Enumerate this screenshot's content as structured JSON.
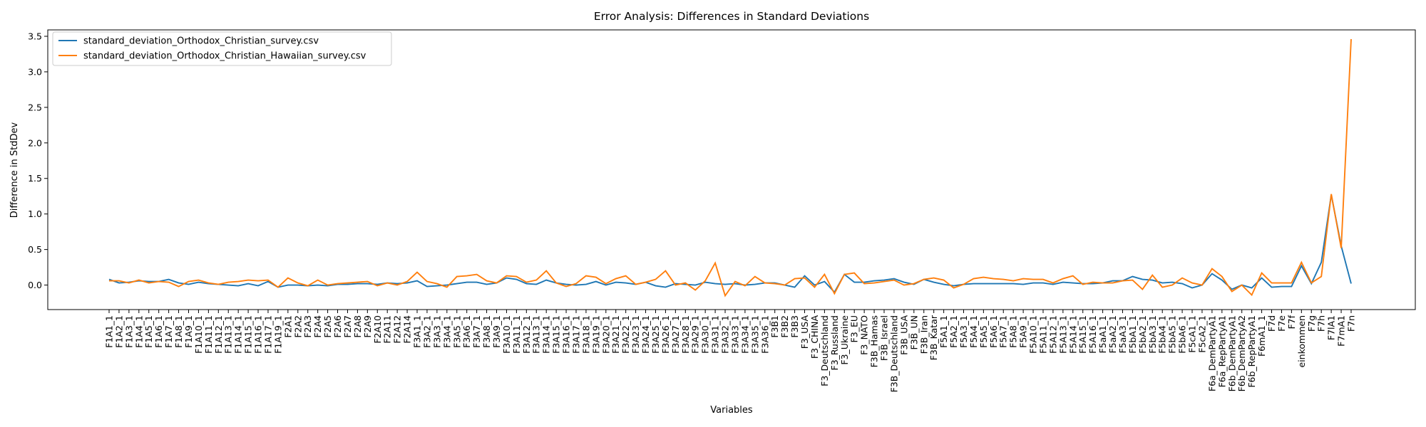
{
  "chart_data": {
    "type": "line",
    "title": "Error Analysis: Differences in Standard Deviations",
    "x_label": "Variables",
    "y_label": "Difference in StdDev",
    "categories": [
      "F1A1_1",
      "F1A2_1",
      "F1A3_1",
      "F1A4_1",
      "F1A5_1",
      "F1A6_1",
      "F1A7_1",
      "F1A8_1",
      "F1A9_1",
      "F1A10_1",
      "F1A11_1",
      "F1A12_1",
      "F1A13_1",
      "F1A14_1",
      "F1A15_1",
      "F1A16_1",
      "F1A17_1",
      "F1A19_1",
      "F2A1",
      "F2A2",
      "F2A3",
      "F2A4",
      "F2A5",
      "F2A6",
      "F2A7",
      "F2A8",
      "F2A9",
      "F2A10",
      "F2A11",
      "F2A12",
      "F2A14",
      "F3A1_1",
      "F3A2_1",
      "F3A3_1",
      "F3A4_1",
      "F3A5_1",
      "F3A6_1",
      "F3A7_1",
      "F3A8_1",
      "F3A9_1",
      "F3A10_1",
      "F3A11_1",
      "F3A12_1",
      "F3A13_1",
      "F3A14_1",
      "F3A15_1",
      "F3A16_1",
      "F3A17_1",
      "F3A18_1",
      "F3A19_1",
      "F3A20_1",
      "F3A21_1",
      "F3A22_1",
      "F3A23_1",
      "F3A24_1",
      "F3A25_1",
      "F3A26_1",
      "F3A27_1",
      "F3A28_1",
      "F3A29_1",
      "F3A30_1",
      "F3A31_1",
      "F3A32_1",
      "F3A33_1",
      "F3A34_1",
      "F3A35_1",
      "F3A36_1",
      "F3B1",
      "F3B2",
      "F3B3",
      "F3_USA",
      "F3_CHINA",
      "F3_Deutschland",
      "F3_Russland",
      "F3_Ukraine",
      "F3_EU",
      "F3_NATO",
      "F3B_Hamas",
      "F3B_Israel",
      "F3B_Deutschland",
      "F3B_USA",
      "F3B_UN",
      "F3B_Iran",
      "F3B_Katar",
      "F5A1_1",
      "F5A2_1",
      "F5A3_1",
      "F5A4_1",
      "F5A5_1",
      "F5A6_1",
      "F5A7_1",
      "F5A8_1",
      "F5A9_1",
      "F5A10_1",
      "F5A11_1",
      "F5A12_1",
      "F5A13_1",
      "F5A14_1",
      "F5A15_1",
      "F5A16_1",
      "F5aA1_1",
      "F5aA2_1",
      "F5aA3_1",
      "F5bA1_1",
      "F5bA2_1",
      "F5bA3_1",
      "F5bA4_1",
      "F5bA5_1",
      "F5bA6_1",
      "F5cA1_1",
      "F5cA2_1",
      "F6a_DemPartyA1",
      "F6a_RepPartyA1",
      "F6b_DemPartyA1",
      "F6b_DemPartyA2",
      "F6b_RepPartyA1",
      "F6mA1_1",
      "F7d",
      "F7e",
      "F7f",
      "einkommen",
      "F7g",
      "F7h",
      "F7lA1",
      "F7mA1",
      "F7n"
    ],
    "series": [
      {
        "name": "standard_deviation_Orthodox_Christian_survey.csv",
        "color": "#1f77b4",
        "values": [
          0.08,
          0.03,
          0.04,
          0.06,
          0.05,
          0.05,
          0.08,
          0.03,
          0.01,
          0.04,
          0.02,
          0.01,
          0.0,
          -0.01,
          0.02,
          -0.01,
          0.05,
          -0.03,
          0.0,
          0.0,
          -0.01,
          0.0,
          -0.01,
          0.01,
          0.01,
          0.02,
          0.02,
          0.01,
          0.03,
          0.02,
          0.03,
          0.06,
          -0.02,
          -0.01,
          0.0,
          0.02,
          0.04,
          0.04,
          0.01,
          0.03,
          0.1,
          0.08,
          0.02,
          0.01,
          0.07,
          0.03,
          0.01,
          0.0,
          0.01,
          0.05,
          0.0,
          0.04,
          0.03,
          0.01,
          0.04,
          -0.01,
          -0.03,
          0.02,
          0.01,
          0.0,
          0.04,
          0.02,
          0.01,
          0.02,
          0.0,
          0.01,
          0.03,
          0.03,
          0.0,
          -0.03,
          0.13,
          0.0,
          0.05,
          -0.1,
          0.15,
          0.04,
          0.04,
          0.06,
          0.07,
          0.09,
          0.04,
          0.01,
          0.08,
          0.04,
          0.01,
          -0.01,
          0.01,
          0.02,
          0.02,
          0.02,
          0.02,
          0.02,
          0.01,
          0.03,
          0.03,
          0.01,
          0.04,
          0.03,
          0.02,
          0.02,
          0.03,
          0.06,
          0.06,
          0.12,
          0.08,
          0.07,
          0.03,
          0.04,
          0.02,
          -0.04,
          0.0,
          0.16,
          0.07,
          -0.06,
          0.0,
          -0.04,
          0.1,
          -0.03,
          -0.02,
          -0.02,
          0.27,
          0.02,
          0.32,
          1.27,
          0.55,
          0.02
        ]
      },
      {
        "name": "standard_deviation_Orthodox_Christian_Hawaiian_survey.csv",
        "color": "#ff7f0e",
        "values": [
          0.06,
          0.06,
          0.03,
          0.07,
          0.03,
          0.05,
          0.04,
          -0.02,
          0.05,
          0.07,
          0.03,
          0.01,
          0.04,
          0.05,
          0.07,
          0.06,
          0.07,
          -0.03,
          0.1,
          0.03,
          -0.01,
          0.07,
          0.0,
          0.02,
          0.03,
          0.04,
          0.05,
          -0.01,
          0.03,
          0.0,
          0.05,
          0.18,
          0.05,
          0.02,
          -0.03,
          0.12,
          0.13,
          0.15,
          0.06,
          0.03,
          0.13,
          0.12,
          0.04,
          0.07,
          0.2,
          0.03,
          -0.02,
          0.02,
          0.13,
          0.11,
          0.02,
          0.09,
          0.13,
          0.01,
          0.04,
          0.08,
          0.2,
          0.0,
          0.03,
          -0.07,
          0.06,
          0.31,
          -0.15,
          0.05,
          -0.01,
          0.12,
          0.03,
          0.02,
          0.0,
          0.09,
          0.1,
          -0.03,
          0.15,
          -0.12,
          0.15,
          0.17,
          0.02,
          0.03,
          0.05,
          0.07,
          0.0,
          0.02,
          0.08,
          0.1,
          0.07,
          -0.04,
          0.01,
          0.09,
          0.11,
          0.09,
          0.08,
          0.06,
          0.09,
          0.08,
          0.08,
          0.03,
          0.09,
          0.13,
          0.01,
          0.04,
          0.03,
          0.03,
          0.06,
          0.07,
          -0.06,
          0.14,
          -0.03,
          0.0,
          0.1,
          0.03,
          0.0,
          0.23,
          0.12,
          -0.09,
          0.0,
          -0.14,
          0.17,
          0.03,
          0.03,
          0.03,
          0.32,
          0.03,
          0.12,
          1.28,
          0.52,
          3.46
        ]
      }
    ],
    "ylim": [
      -0.345,
      3.59
    ],
    "yticks": [
      {
        "value": 0,
        "label": "0.0"
      },
      {
        "value": 0.5,
        "label": "0.5"
      },
      {
        "value": 1,
        "label": "1.0"
      },
      {
        "value": 1.5,
        "label": "1.5"
      },
      {
        "value": 2,
        "label": "2.0"
      },
      {
        "value": 2.5,
        "label": "2.5"
      },
      {
        "value": 3,
        "label": "3.0"
      },
      {
        "value": 3.5,
        "label": "3.5"
      }
    ],
    "grid": false,
    "legend": "upper left"
  }
}
